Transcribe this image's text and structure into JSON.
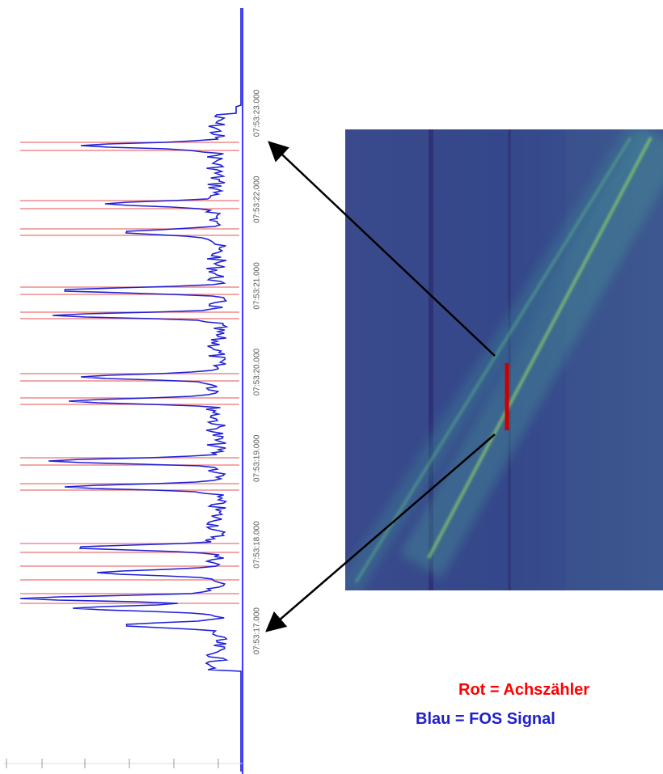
{
  "plot": {
    "time_labels": [
      "07:53:23.000",
      "07:53:22.000",
      "07:53:21.000",
      "07:53:20.000",
      "07:53:19.000",
      "07:53:18.000",
      "07:53:17.000"
    ]
  },
  "legend": {
    "red": "Rot = Achszähler",
    "blue": "Blau = FOS Signal"
  }
}
